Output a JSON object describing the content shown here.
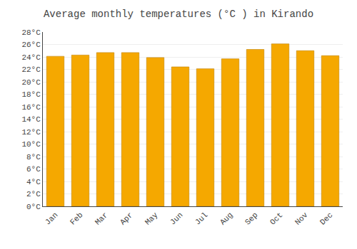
{
  "chart_data": {
    "type": "bar",
    "title": "Average monthly temperatures (°C ) in Kirando",
    "categories": [
      "Jan",
      "Feb",
      "Mar",
      "Apr",
      "May",
      "Jun",
      "Jul",
      "Aug",
      "Sep",
      "Oct",
      "Nov",
      "Dec"
    ],
    "values": [
      24.1,
      24.3,
      24.7,
      24.7,
      23.9,
      22.4,
      22.1,
      23.7,
      25.2,
      26.1,
      25.0,
      24.2
    ],
    "color": "#F5A800",
    "ylim": [
      0,
      28
    ],
    "yticks": [
      {
        "value": 0,
        "label": "0°C"
      },
      {
        "value": 2,
        "label": "2°C"
      },
      {
        "value": 4,
        "label": "4°C"
      },
      {
        "value": 6,
        "label": "6°C"
      },
      {
        "value": 8,
        "label": "8°C"
      },
      {
        "value": 10,
        "label": "10°C"
      },
      {
        "value": 12,
        "label": "12°C"
      },
      {
        "value": 14,
        "label": "14°C"
      },
      {
        "value": 16,
        "label": "16°C"
      },
      {
        "value": 18,
        "label": "18°C"
      },
      {
        "value": 20,
        "label": "20°C"
      },
      {
        "value": 22,
        "label": "22°C"
      },
      {
        "value": 24,
        "label": "24°C"
      },
      {
        "value": 26,
        "label": "26°C"
      },
      {
        "value": 28,
        "label": "28°C"
      }
    ],
    "grid": true
  }
}
